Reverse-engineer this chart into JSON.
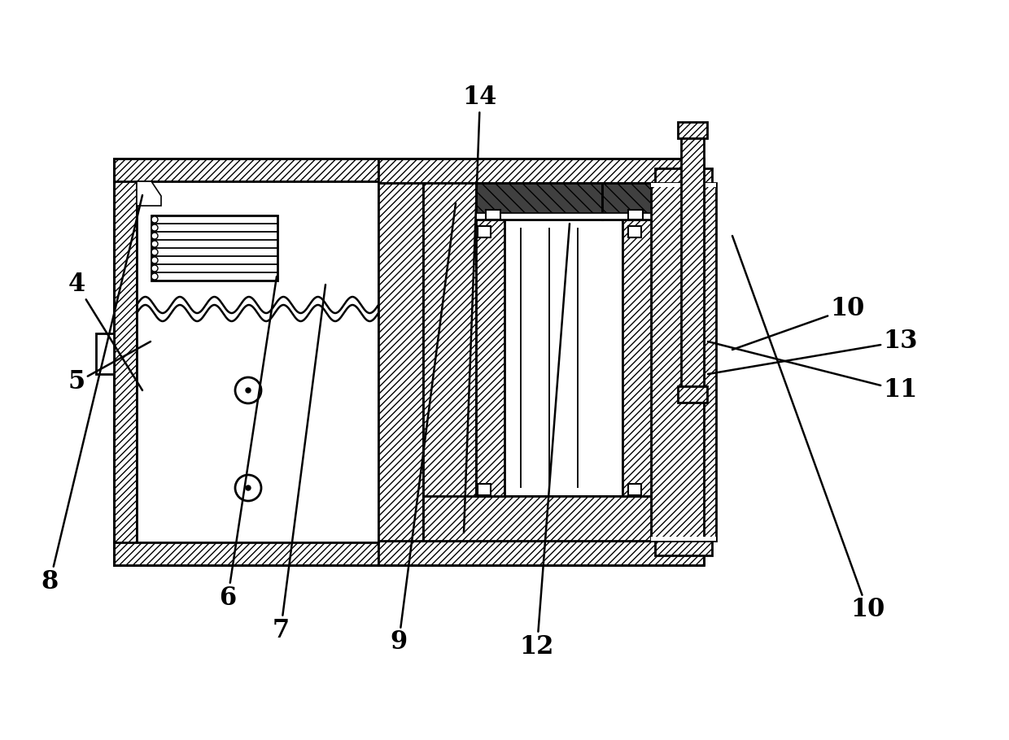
{
  "bg_color": "#ffffff",
  "line_color": "#000000",
  "lw_main": 2.0,
  "lw_thin": 1.2,
  "label_fontsize": 22,
  "annotations": [
    [
      "4",
      105,
      560,
      175,
      430
    ],
    [
      "5",
      105,
      440,
      185,
      490
    ],
    [
      "6",
      280,
      175,
      340,
      570
    ],
    [
      "7",
      345,
      135,
      400,
      560
    ],
    [
      "8",
      72,
      195,
      175,
      670
    ],
    [
      "9",
      490,
      120,
      560,
      660
    ],
    [
      "10",
      1045,
      160,
      900,
      620
    ],
    [
      "10",
      1020,
      530,
      900,
      480
    ],
    [
      "11",
      1085,
      430,
      870,
      490
    ],
    [
      "12",
      660,
      115,
      700,
      635
    ],
    [
      "13",
      1085,
      490,
      870,
      450
    ],
    [
      "14",
      590,
      790,
      570,
      255
    ]
  ]
}
